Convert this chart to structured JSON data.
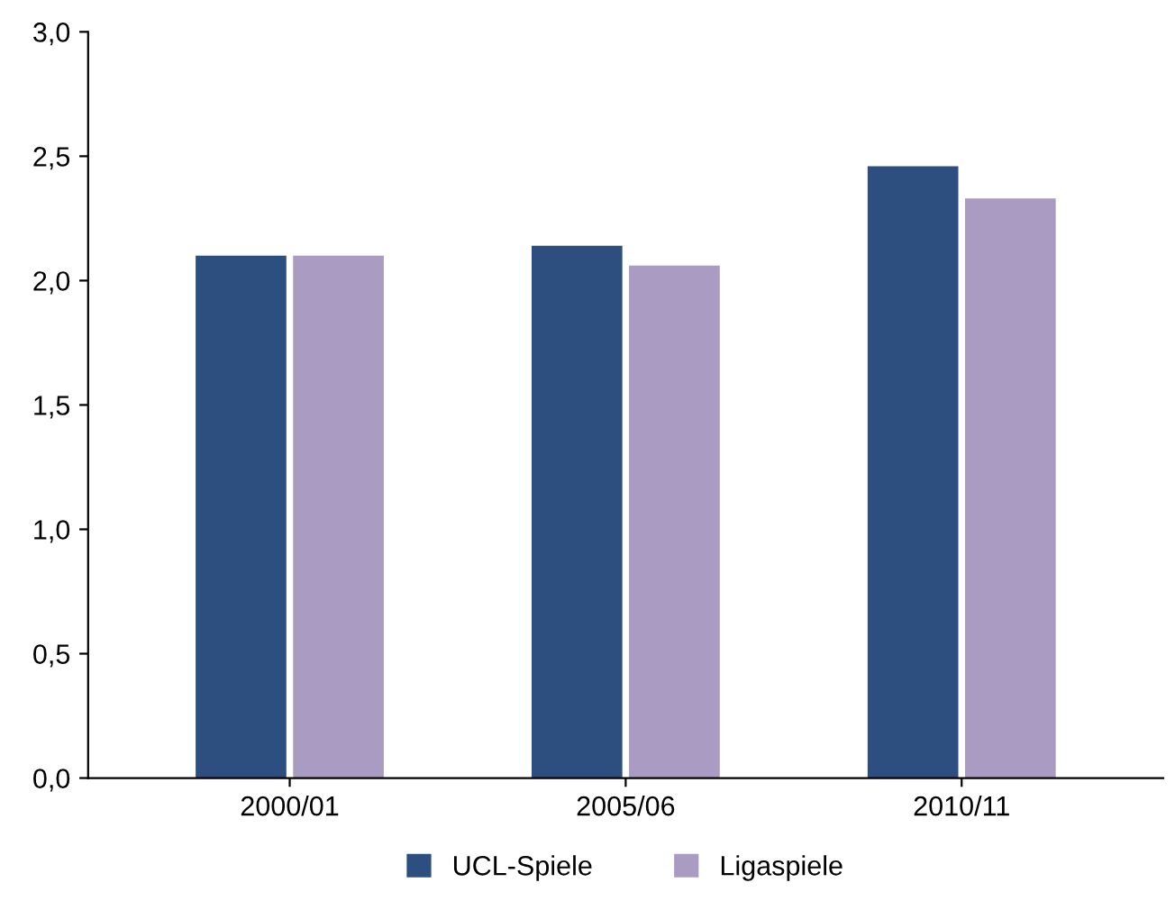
{
  "chart_data": {
    "type": "bar",
    "categories": [
      "2000/01",
      "2005/06",
      "2010/11"
    ],
    "series": [
      {
        "name": "UCL-Spiele",
        "color": "#2c4f80",
        "values": [
          2.1,
          2.14,
          2.46
        ]
      },
      {
        "name": "Ligaspiele",
        "color": "#a99bc2",
        "values": [
          2.1,
          2.06,
          2.33
        ]
      }
    ],
    "ylim": [
      0,
      3
    ],
    "yticks": [
      {
        "value": 0,
        "label": "0,0"
      },
      {
        "value": 0.5,
        "label": "0,5"
      },
      {
        "value": 1,
        "label": "1,0"
      },
      {
        "value": 1.5,
        "label": "1,5"
      },
      {
        "value": 2,
        "label": "2,0"
      },
      {
        "value": 2.5,
        "label": "2,5"
      },
      {
        "value": 3,
        "label": "3,0"
      }
    ],
    "grid": false,
    "legend": "bottom"
  }
}
